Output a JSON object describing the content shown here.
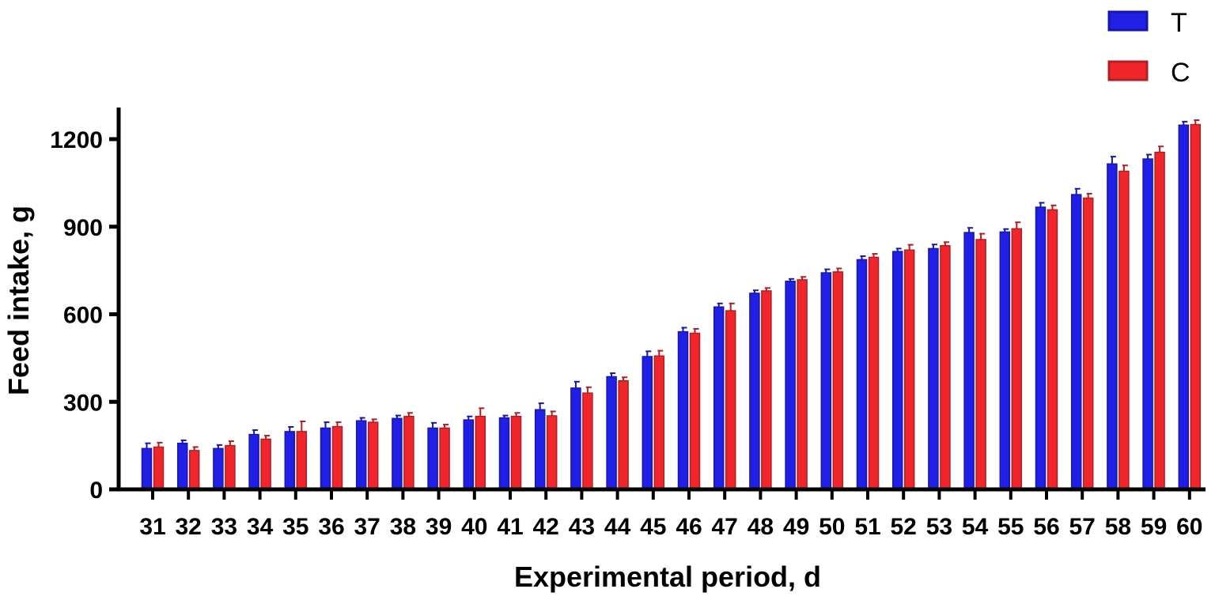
{
  "chart_data": {
    "type": "bar",
    "title": "",
    "xlabel": "Experimental period, d",
    "ylabel": "Feed intake, g",
    "ylim": [
      0,
      1300
    ],
    "yticks": [
      0,
      300,
      600,
      900,
      1200
    ],
    "grid": false,
    "legend_position": "top-right",
    "categories": [
      "31",
      "32",
      "33",
      "34",
      "35",
      "36",
      "37",
      "38",
      "39",
      "40",
      "41",
      "42",
      "43",
      "44",
      "45",
      "46",
      "47",
      "48",
      "49",
      "50",
      "51",
      "52",
      "53",
      "54",
      "55",
      "56",
      "57",
      "58",
      "59",
      "60"
    ],
    "series": [
      {
        "name": "T",
        "color": "#1f1fe6",
        "values": [
          140,
          158,
          140,
          188,
          198,
          210,
          235,
          243,
          210,
          238,
          245,
          273,
          347,
          386,
          455,
          540,
          625,
          672,
          713,
          742,
          787,
          815,
          825,
          880,
          882,
          967,
          1010,
          1115,
          1132,
          1248
        ],
        "errors": [
          18,
          10,
          12,
          15,
          16,
          20,
          10,
          10,
          18,
          12,
          8,
          22,
          22,
          12,
          18,
          14,
          12,
          10,
          8,
          12,
          12,
          10,
          14,
          16,
          10,
          15,
          20,
          25,
          15,
          12
        ]
      },
      {
        "name": "C",
        "color": "#f0262c",
        "values": [
          145,
          133,
          150,
          172,
          198,
          215,
          230,
          250,
          210,
          250,
          250,
          252,
          330,
          372,
          457,
          535,
          612,
          680,
          718,
          745,
          795,
          820,
          835,
          856,
          893,
          958,
          998,
          1090,
          1155,
          1250
        ],
        "errors": [
          15,
          12,
          15,
          12,
          35,
          15,
          10,
          12,
          12,
          28,
          12,
          15,
          20,
          12,
          18,
          15,
          25,
          10,
          10,
          12,
          12,
          18,
          12,
          20,
          22,
          15,
          15,
          20,
          20,
          15
        ]
      }
    ]
  }
}
